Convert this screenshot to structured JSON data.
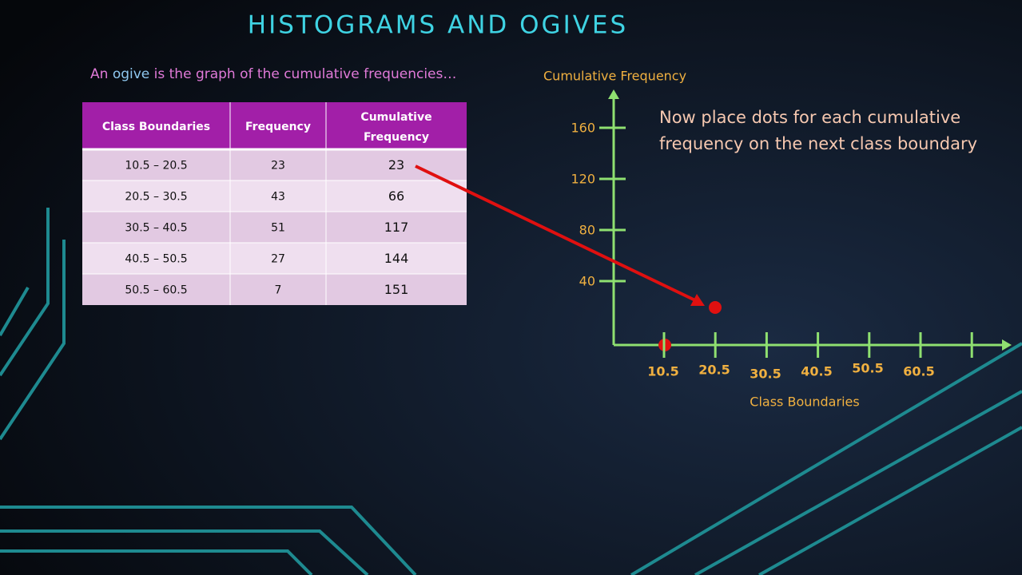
{
  "header": {
    "title": "HISTOGRAMS AND OGIVES",
    "intro": [
      "An ",
      "ogive",
      " is the graph of the cumulative frequencies…"
    ]
  },
  "table": {
    "columns": [
      "Class Boundaries",
      "Frequency",
      "Cumulative Frequency"
    ],
    "rows": [
      [
        "10.5 – 20.5",
        "23",
        "23"
      ],
      [
        "20.5 – 30.5",
        "43",
        "66"
      ],
      [
        "30.5 – 40.5",
        "51",
        "117"
      ],
      [
        "40.5 – 50.5",
        "27",
        "144"
      ],
      [
        "50.5 – 60.5",
        "7",
        "151"
      ]
    ]
  },
  "graph": {
    "y_label": "Cumulative Frequency",
    "x_label": "Class Boundaries",
    "y_ticks": [
      "160",
      "120",
      "80",
      "40"
    ],
    "x_ticks": [
      "10.5",
      "20.5",
      "30.5",
      "40.5",
      "50.5",
      "60.5"
    ],
    "note": [
      "Now place dots for each cumulative",
      "frequency on the next class boundary"
    ]
  }
}
